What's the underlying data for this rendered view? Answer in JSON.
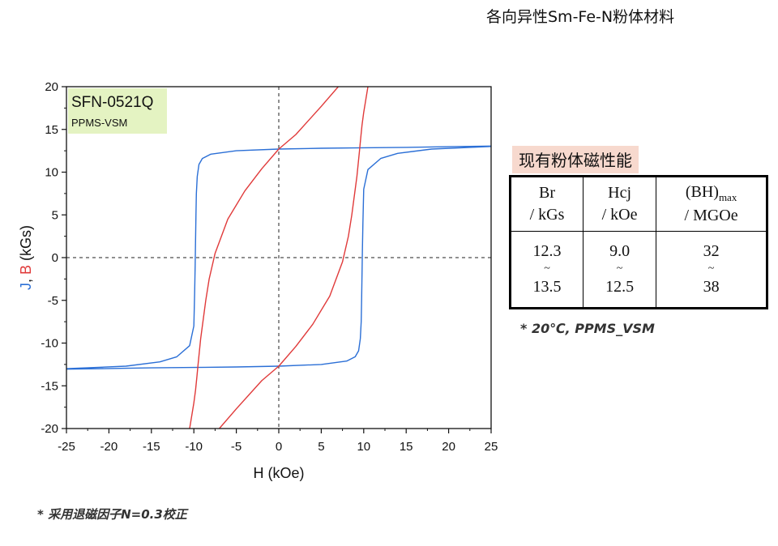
{
  "page_title": "各向异性Sm-Fe-N粉体材料",
  "chart_data": {
    "type": "line",
    "annotation": {
      "title": "SFN-0521Q",
      "subtitle": "PPMS-VSM",
      "bg_color": "#e4f3c2"
    },
    "xlabel": "H (kOe)",
    "ylabel_parts": [
      {
        "text": "J",
        "color": "#2b6fd6"
      },
      {
        "text": ", ",
        "color": "#111111"
      },
      {
        "text": "B",
        "color": "#e03a3a"
      },
      {
        "text": " (kGs)",
        "color": "#111111"
      }
    ],
    "xlim": [
      -25,
      25
    ],
    "ylim": [
      -20,
      20
    ],
    "xticks": [
      "-25",
      "-20",
      "-15",
      "-10",
      "-5",
      "0",
      "5",
      "10",
      "15",
      "20",
      "25"
    ],
    "yticks": [
      "20",
      "15",
      "10",
      "5",
      "0",
      "-5",
      "-10",
      "-15",
      "-20"
    ],
    "grid": false,
    "zero_lines": "dashed",
    "series": [
      {
        "color": "#2b6fd6",
        "segments": [
          {
            "x": [
              25,
              20,
              15,
              10,
              5,
              0,
              -5,
              -8,
              -9,
              -9.4,
              -9.6,
              -9.7,
              -9.75,
              -9.8,
              -9.85,
              -9.9,
              -10,
              -10.5,
              -12,
              -14,
              -18,
              -25
            ],
            "y": [
              13.05,
              12.98,
              12.9,
              12.85,
              12.8,
              12.7,
              12.5,
              12.1,
              11.6,
              10.9,
              9.5,
              7.5,
              5.0,
              2.0,
              -1.0,
              -4.0,
              -8.0,
              -10.3,
              -11.6,
              -12.2,
              -12.7,
              -13.0
            ]
          },
          {
            "x": [
              -25,
              -20,
              -15,
              -10,
              -5,
              0,
              5,
              8,
              9,
              9.4,
              9.6,
              9.7,
              9.75,
              9.8,
              9.85,
              9.9,
              10,
              10.5,
              12,
              14,
              18,
              25
            ],
            "y": [
              -13.05,
              -12.98,
              -12.9,
              -12.85,
              -12.8,
              -12.7,
              -12.5,
              -12.1,
              -11.6,
              -10.9,
              -9.5,
              -7.5,
              -5.0,
              -2.0,
              1.0,
              4.0,
              8.0,
              10.3,
              11.6,
              12.2,
              12.7,
              13.0
            ]
          }
        ]
      },
      {
        "color": "#e03a3a",
        "segments": [
          {
            "x": [
              7,
              5,
              2,
              0,
              -2,
              -4,
              -6,
              -7.5,
              -8.2,
              -8.6,
              -8.8,
              -9.0,
              -9.2,
              -9.35,
              -9.5,
              -9.65,
              -9.8,
              -10.0,
              -10.5
            ],
            "y": [
              20,
              17.7,
              14.4,
              12.7,
              10.4,
              7.8,
              4.5,
              0.5,
              -2.5,
              -5.0,
              -6.5,
              -8.0,
              -9.5,
              -11.0,
              -12.5,
              -14.0,
              -15.5,
              -17.0,
              -20
            ]
          },
          {
            "x": [
              -7,
              -5,
              -2,
              0,
              2,
              4,
              6,
              7.5,
              8.2,
              8.6,
              8.8,
              9.0,
              9.2,
              9.35,
              9.5,
              9.65,
              9.8,
              10.0,
              10.5
            ],
            "y": [
              -20,
              -17.7,
              -14.4,
              -12.7,
              -10.4,
              -7.8,
              -4.5,
              -0.5,
              2.5,
              5.0,
              6.5,
              8.0,
              9.5,
              11.0,
              12.5,
              14.0,
              15.5,
              17.0,
              20
            ]
          }
        ]
      }
    ]
  },
  "properties": {
    "title": "现有粉体磁性能",
    "headers": [
      {
        "line1": "Br",
        "line2": "/ kGs"
      },
      {
        "line1": "Hcj",
        "line2": "/ kOe"
      },
      {
        "line1": "(BH)",
        "sub": "max",
        "line2": "/ MGOe"
      }
    ],
    "rows": [
      {
        "min": "12.3",
        "sep": "~",
        "max": "13.5"
      },
      {
        "min": "9.0",
        "sep": "~",
        "max": "12.5"
      },
      {
        "min": "32",
        "sep": "~",
        "max": "38"
      }
    ],
    "note": "* 20℃, PPMS_VSM"
  },
  "footnote": "* 采用退磁因子N=0.3校正"
}
